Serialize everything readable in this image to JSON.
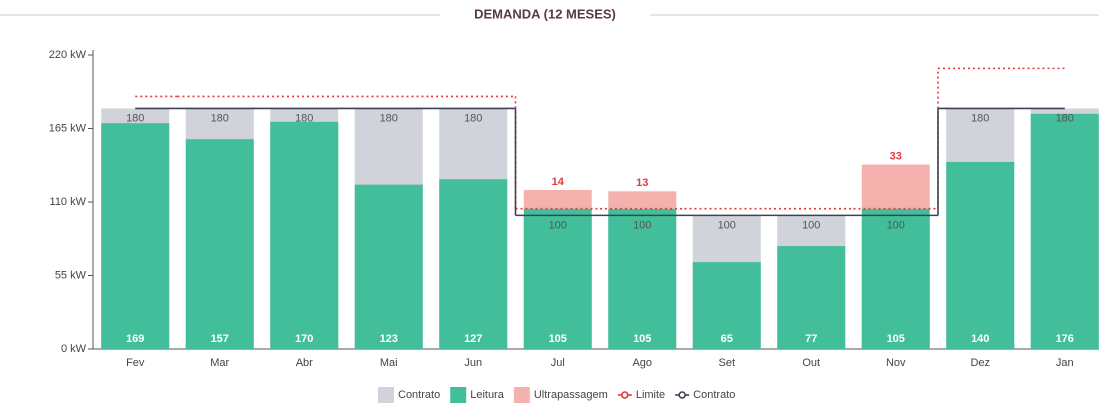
{
  "chart_data": {
    "type": "bar",
    "title": "DEMANDA (12 MESES)",
    "categories": [
      "Fev",
      "Mar",
      "Abr",
      "Mai",
      "Jun",
      "Jul",
      "Ago",
      "Set",
      "Out",
      "Nov",
      "Dez",
      "Jan"
    ],
    "series": [
      {
        "name": "Contrato",
        "kind": "bar",
        "color": "#d0d3d9",
        "values": [
          180,
          180,
          180,
          180,
          180,
          100,
          100,
          100,
          100,
          100,
          180,
          180
        ]
      },
      {
        "name": "Leitura",
        "kind": "bar",
        "color": "#43be9b",
        "values": [
          169,
          157,
          170,
          123,
          127,
          105,
          105,
          65,
          77,
          105,
          140,
          176
        ]
      },
      {
        "name": "Ultrapassagem",
        "kind": "stack",
        "color": "#f4b1ad",
        "values": [
          null,
          null,
          null,
          null,
          null,
          14,
          13,
          null,
          null,
          33,
          null,
          null
        ]
      },
      {
        "name": "Limite",
        "kind": "line",
        "color": "#e0393b",
        "values": [
          189,
          189,
          189,
          189,
          189,
          105,
          105,
          105,
          105,
          105,
          210,
          210
        ]
      },
      {
        "name": "Contrato",
        "kind": "line",
        "color": "#3d4350",
        "values": [
          180,
          180,
          180,
          180,
          180,
          100,
          100,
          100,
          100,
          100,
          180,
          180
        ]
      }
    ],
    "ylim": [
      0,
      220
    ],
    "yticks": [
      {
        "value": 0,
        "label": "0 kW"
      },
      {
        "value": 55,
        "label": "55 kW"
      },
      {
        "value": 110,
        "label": "110 kW"
      },
      {
        "value": 165,
        "label": "165 kW"
      },
      {
        "value": 220,
        "label": "220 kW"
      }
    ]
  }
}
